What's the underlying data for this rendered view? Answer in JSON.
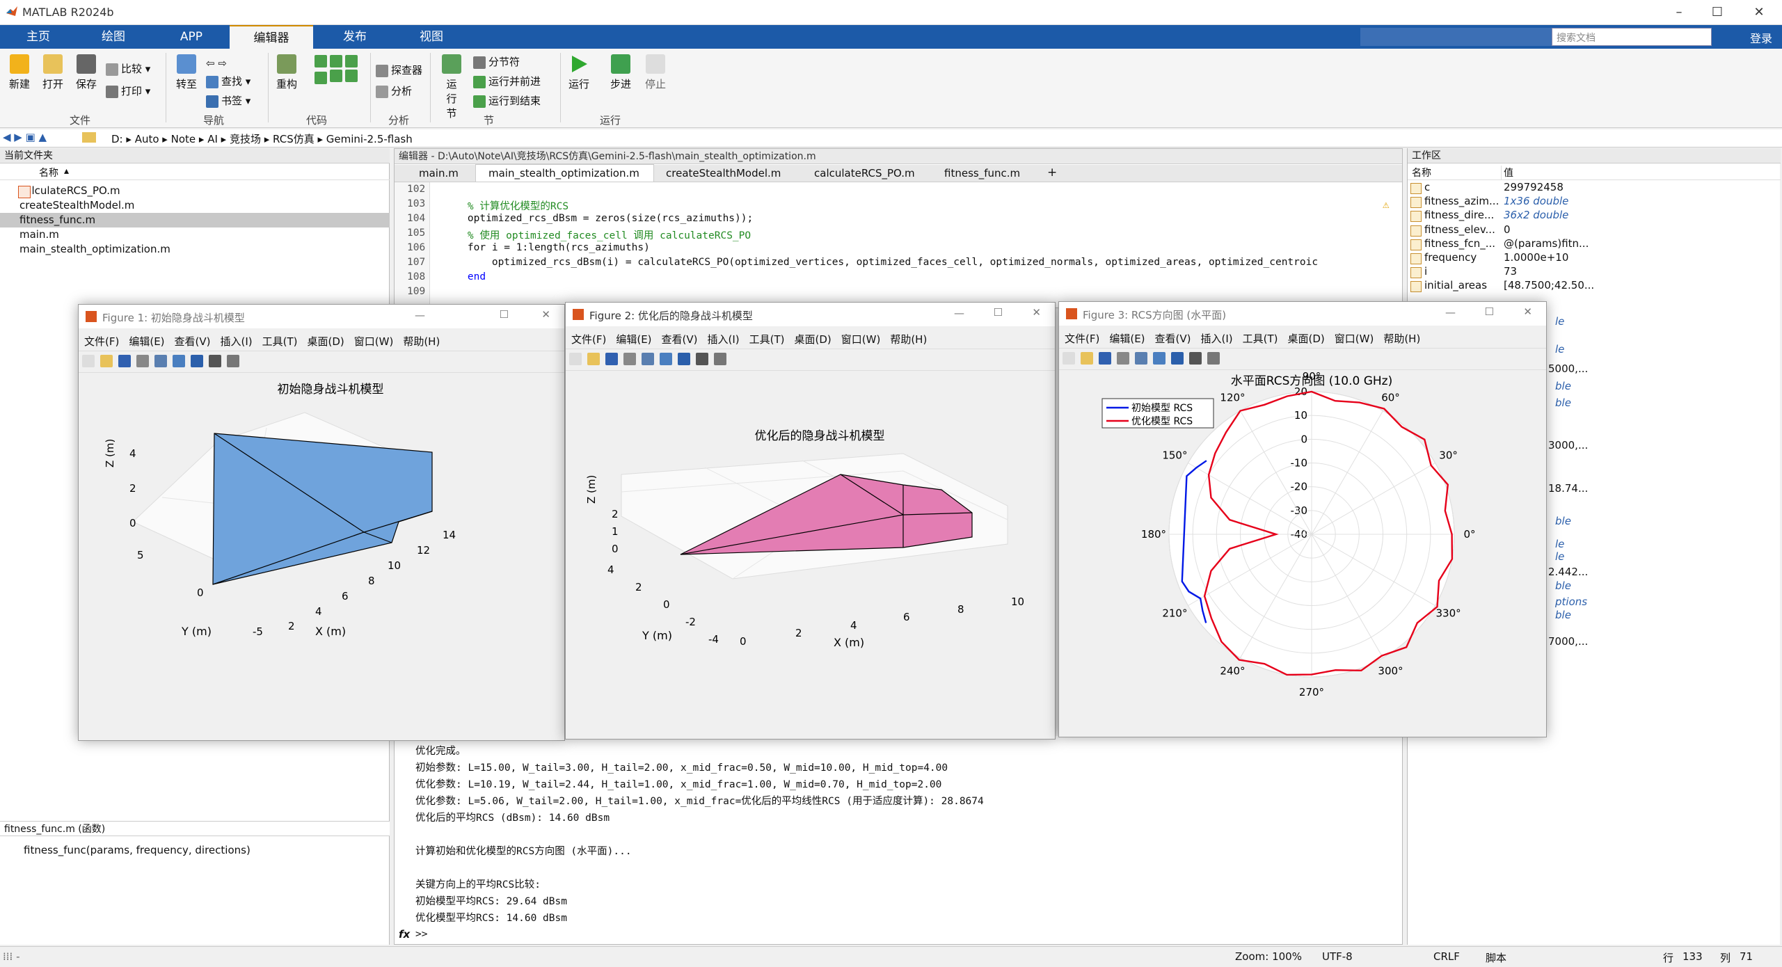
{
  "app": {
    "title": "MATLAB R2024b",
    "tabs": [
      "主页",
      "绘图",
      "APP",
      "编辑器",
      "发布",
      "视图"
    ],
    "active_tab": "编辑器",
    "search_placeholder": "搜索文档",
    "login": "登录"
  },
  "ribbon": {
    "file": {
      "new": "新建",
      "open": "打开",
      "save": "保存",
      "compare": "比较",
      "print": "打印",
      "label": "文件"
    },
    "nav": {
      "goto": "转至",
      "find": "查找",
      "bookmark": "书签",
      "label": "导航"
    },
    "code": {
      "refactor": "重构",
      "label": "代码"
    },
    "analyze": {
      "profiler": "探查器",
      "analyze": "分析",
      "label": "分析"
    },
    "section": {
      "run_section": "运行节",
      "section_break": "分节符",
      "run_advance": "运行并前进",
      "run_to_end": "运行到结束",
      "label": "节"
    },
    "run": {
      "run": "运行",
      "step": "步进",
      "stop": "停止",
      "label": "运行"
    }
  },
  "address": {
    "crumbs": [
      "D:",
      "Auto",
      "Note",
      "AI",
      "竞技场",
      "RCS仿真",
      "Gemini-2.5-flash"
    ]
  },
  "current_folder": {
    "title": "当前文件夹",
    "col_name": "名称",
    "files": [
      "calculateRCS_PO.m",
      "createStealthModel.m",
      "fitness_func.m",
      "main.m",
      "main_stealth_optimization.m"
    ],
    "selected": "fitness_func.m",
    "details_title": "fitness_func.m (函数)",
    "details_sig": "fitness_func(params, frequency, directions)"
  },
  "editor": {
    "title": "编辑器 - D:\\Auto\\Note\\AI\\竞技场\\RCS仿真\\Gemini-2.5-flash\\main_stealth_optimization.m",
    "tabs": [
      "main.m",
      "main_stealth_optimization.m",
      "createStealthModel.m",
      "calculateRCS_PO.m",
      "fitness_func.m"
    ],
    "active_tab": "main_stealth_optimization.m",
    "lines": [
      {
        "n": "102",
        "code": ""
      },
      {
        "n": "103",
        "code": "    % 计算优化模型的RCS"
      },
      {
        "n": "104",
        "code": "    optimized_rcs_dBsm = zeros(size(rcs_azimuths));"
      },
      {
        "n": "105",
        "code": "    % 使用 optimized_faces_cell 调用 calculateRCS_PO"
      },
      {
        "n": "106",
        "code": "    for i = 1:length(rcs_azimuths)"
      },
      {
        "n": "107",
        "code": "        optimized_rcs_dBsm(i) = calculateRCS_PO(optimized_vertices, optimized_faces_cell, optimized_normals, optimized_areas, optimized_centroic"
      },
      {
        "n": "108",
        "code": "    end"
      },
      {
        "n": "109",
        "code": ""
      }
    ]
  },
  "command_window": {
    "lines": [
      "优化完成。",
      "初始参数: L=15.00, W_tail=3.00, H_tail=2.00, x_mid_frac=0.50, W_mid=10.00, H_mid_top=4.00",
      "优化参数: L=10.19, W_tail=2.44, H_tail=1.00, x_mid_frac=1.00, W_mid=0.70, H_mid_top=2.00",
      "优化参数: L=5.06, W_tail=2.00, H_tail=1.00, x_mid_frac=优化后的平均线性RCS (用于适应度计算): 28.8674",
      "优化后的平均RCS (dBsm): 14.60 dBsm",
      "",
      "计算初始和优化模型的RCS方向图 (水平面)...",
      "",
      "关键方向上的平均RCS比较:",
      "初始模型平均RCS: 29.64 dBsm",
      "优化模型平均RCS: 14.60 dBsm"
    ],
    "prompt": ">>"
  },
  "workspace": {
    "title": "工作区",
    "col_name": "名称",
    "col_value": "值",
    "vars": [
      {
        "name": "c",
        "value": "299792458",
        "italic": false
      },
      {
        "name": "fitness_azim...",
        "value": "1x36 double",
        "italic": true
      },
      {
        "name": "fitness_dire...",
        "value": "36x2 double",
        "italic": true
      },
      {
        "name": "fitness_elev...",
        "value": "0",
        "italic": false
      },
      {
        "name": "fitness_fcn_...",
        "value": "@(params)fitn...",
        "italic": false
      },
      {
        "name": "frequency",
        "value": "1.0000e+10",
        "italic": false
      },
      {
        "name": "i",
        "value": "73",
        "italic": false
      },
      {
        "name": "initial_areas",
        "value": "[48.7500;42.50...",
        "italic": false
      }
    ],
    "partial_values": [
      "le",
      "le",
      "5000,...",
      "ble",
      "ble",
      "3000,...",
      "18.74...",
      "ble",
      "le",
      "le",
      "2.442...",
      "ble",
      "ptions",
      "ble",
      "7000,..."
    ]
  },
  "figures": [
    {
      "title": "Figure 1: 初始隐身战斗机模型",
      "plot_title": "初始隐身战斗机模型",
      "xlabel": "X (m)",
      "ylabel": "Y (m)",
      "zlabel": "Z (m)",
      "xticks": [
        "2",
        "4",
        "6",
        "8",
        "10",
        "12",
        "14"
      ],
      "yticks": [
        "-5",
        "0",
        "5"
      ],
      "zticks": [
        "0",
        "2",
        "4"
      ],
      "color": "#6fa3dc"
    },
    {
      "title": "Figure 2: 优化后的隐身战斗机模型",
      "plot_title": "优化后的隐身战斗机模型",
      "xlabel": "X (m)",
      "ylabel": "Y (m)",
      "zlabel": "Z (m)",
      "xticks": [
        "0",
        "2",
        "4",
        "6",
        "8",
        "10"
      ],
      "yticks": [
        "-4",
        "-2",
        "0",
        "2",
        "4"
      ],
      "zticks": [
        "0",
        "1",
        "2"
      ],
      "color": "#e37db3"
    },
    {
      "title": "Figure 3: RCS方向图 (水平面)",
      "plot_title": "水平面RCS方向图 (10.0 GHz)"
    }
  ],
  "menus": [
    "文件(F)",
    "编辑(E)",
    "查看(V)",
    "插入(I)",
    "工具(T)",
    "桌面(D)",
    "窗口(W)",
    "帮助(H)"
  ],
  "chart_data": {
    "type": "line",
    "subtype": "polar",
    "title": "水平面RCS方向图 (10.0 GHz)",
    "r_ticks": [
      "20",
      "10",
      "0",
      "-10",
      "-20",
      "-30",
      "-40"
    ],
    "rlim": [
      -40,
      20
    ],
    "theta_ticks": [
      "0°",
      "30°",
      "60°",
      "90°",
      "120°",
      "150°",
      "180°",
      "210°",
      "240°",
      "270°",
      "300°",
      "330°"
    ],
    "theta_tick_values": [
      0,
      30,
      60,
      90,
      120,
      150,
      180,
      210,
      240,
      270,
      300,
      330
    ],
    "legend": "top-left",
    "series": [
      {
        "name": "初始模型 RCS",
        "color": "#0018e6",
        "points": [
          [
            145,
            14
          ],
          [
            150,
            16
          ],
          [
            155,
            18
          ],
          [
            200,
            18
          ],
          [
            205,
            17
          ],
          [
            210,
            14
          ],
          [
            215,
            16
          ],
          [
            220,
            18
          ]
        ]
      },
      {
        "name": "优化模型 RCS",
        "color": "#e6001a",
        "points": [
          [
            0,
            19
          ],
          [
            10,
            17
          ],
          [
            20,
            21
          ],
          [
            30,
            18
          ],
          [
            40,
            22
          ],
          [
            50,
            19
          ],
          [
            60,
            21
          ],
          [
            70,
            19
          ],
          [
            80,
            17
          ],
          [
            90,
            20
          ],
          [
            100,
            19
          ],
          [
            110,
            18
          ],
          [
            120,
            20
          ],
          [
            130,
            16
          ],
          [
            140,
            13
          ],
          [
            150,
            10
          ],
          [
            160,
            5
          ],
          [
            170,
            -5
          ],
          [
            180,
            -25
          ],
          [
            190,
            -5
          ],
          [
            200,
            5
          ],
          [
            210,
            12
          ],
          [
            220,
            15
          ],
          [
            230,
            19
          ],
          [
            240,
            21
          ],
          [
            250,
            18
          ],
          [
            260,
            20
          ],
          [
            270,
            19
          ],
          [
            280,
            18
          ],
          [
            290,
            21
          ],
          [
            300,
            19
          ],
          [
            310,
            22
          ],
          [
            320,
            18
          ],
          [
            330,
            21
          ],
          [
            340,
            17
          ],
          [
            350,
            20
          ]
        ]
      }
    ]
  },
  "statusbar": {
    "zoom": "Zoom: 100%",
    "encoding": "UTF-8",
    "eol": "CRLF",
    "mode": "脚本",
    "line_label": "行",
    "line": "133",
    "col_label": "列",
    "col": "71"
  }
}
